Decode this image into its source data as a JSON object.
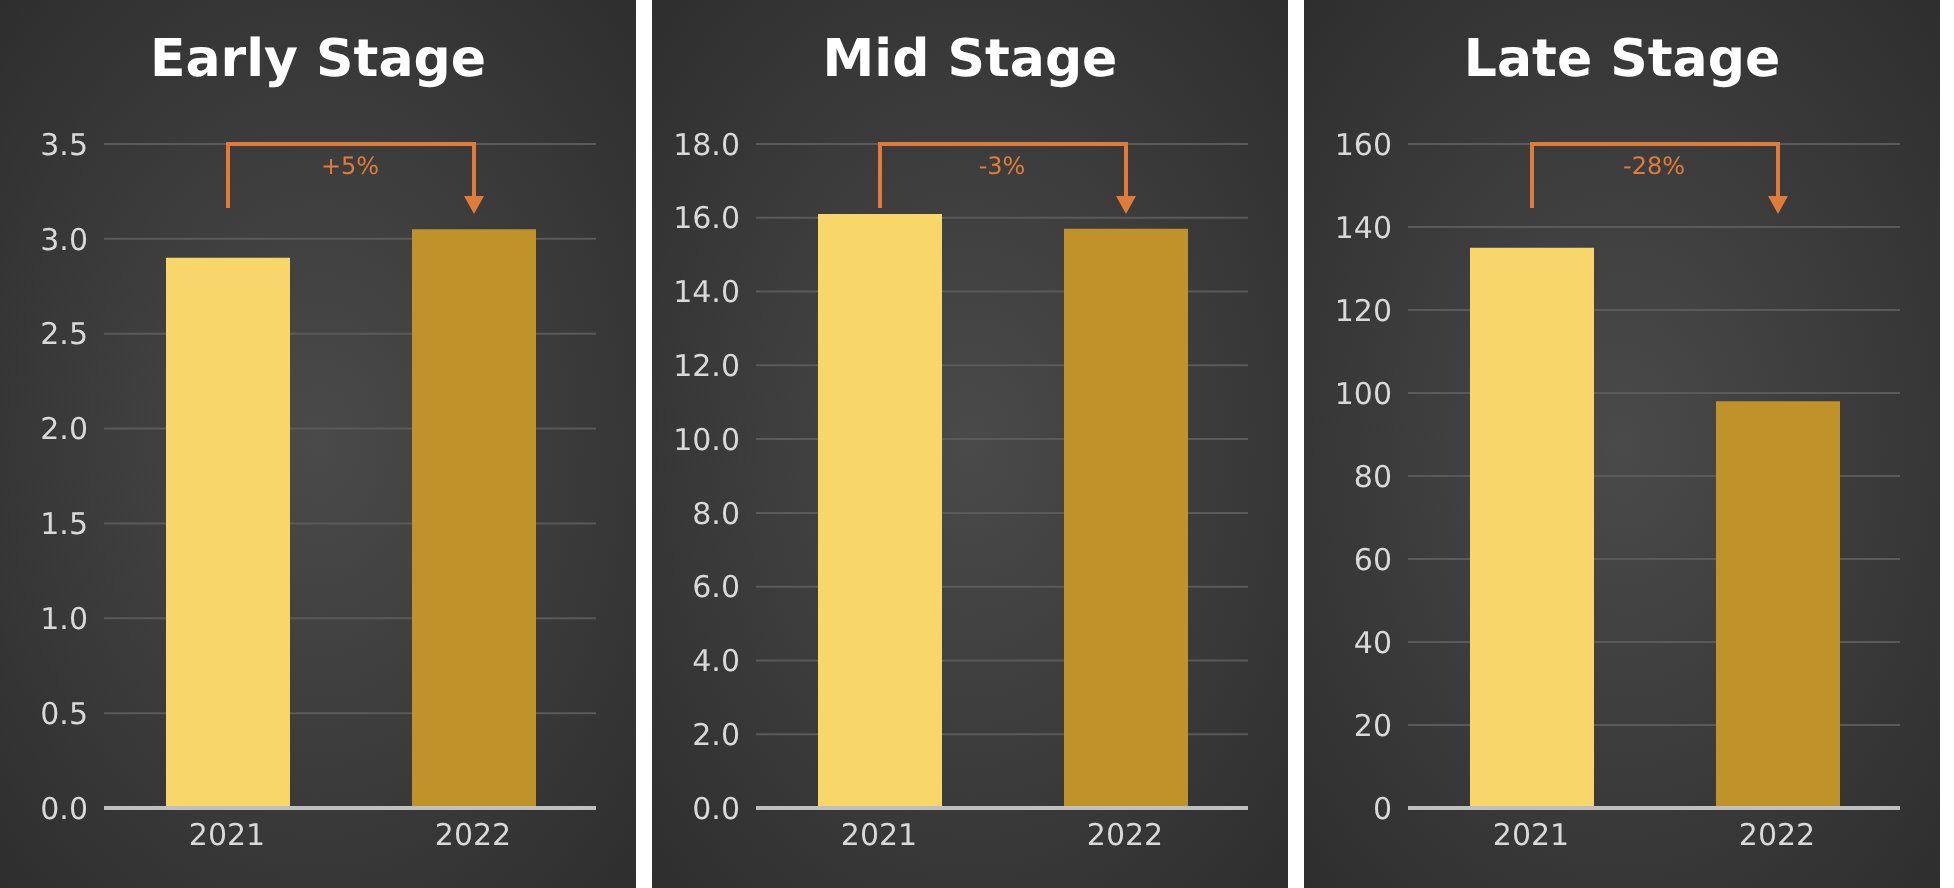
{
  "chart_data": [
    {
      "type": "bar",
      "title": "Early Stage",
      "categories": [
        "2021",
        "2022"
      ],
      "values": [
        2.9,
        3.05
      ],
      "colors": [
        "#f9d66a",
        "#c0922a"
      ],
      "ylim": [
        0,
        3.5
      ],
      "yticks": [
        {
          "value": 0,
          "label": "0.0"
        },
        0.5,
        {
          "value": 1,
          "label": "1.0"
        },
        1.5,
        {
          "value": 2,
          "label": "2.0"
        },
        2.5,
        {
          "value": 3,
          "label": "3.0"
        },
        3.5
      ],
      "grid": "y",
      "annotations": [
        "+5%"
      ]
    },
    {
      "type": "bar",
      "title": "Mid Stage",
      "categories": [
        "2021",
        "2022"
      ],
      "values": [
        16.1,
        15.7
      ],
      "colors": [
        "#f9d66a",
        "#c0922a"
      ],
      "ylim": [
        0,
        18
      ],
      "yticks": [
        {
          "value": 0,
          "label": "0.0"
        },
        {
          "value": 2,
          "label": "2.0"
        },
        {
          "value": 4,
          "label": "4.0"
        },
        {
          "value": 6,
          "label": "6.0"
        },
        {
          "value": 8,
          "label": "8.0"
        },
        {
          "value": 10,
          "label": "10.0"
        },
        {
          "value": 12,
          "label": "12.0"
        },
        {
          "value": 14,
          "label": "14.0"
        },
        {
          "value": 16,
          "label": "16.0"
        },
        {
          "value": 18,
          "label": "18.0"
        }
      ],
      "grid": "y",
      "annotations": [
        "-3%"
      ]
    },
    {
      "type": "bar",
      "title": "Late Stage",
      "categories": [
        "2021",
        "2022"
      ],
      "values": [
        135,
        98
      ],
      "colors": [
        "#f9d66a",
        "#c0922a"
      ],
      "ylim": [
        0,
        160
      ],
      "yticks": [
        0,
        20,
        40,
        60,
        80,
        100,
        120,
        140,
        160
      ],
      "grid": "y",
      "annotations": [
        "-28%"
      ]
    }
  ]
}
